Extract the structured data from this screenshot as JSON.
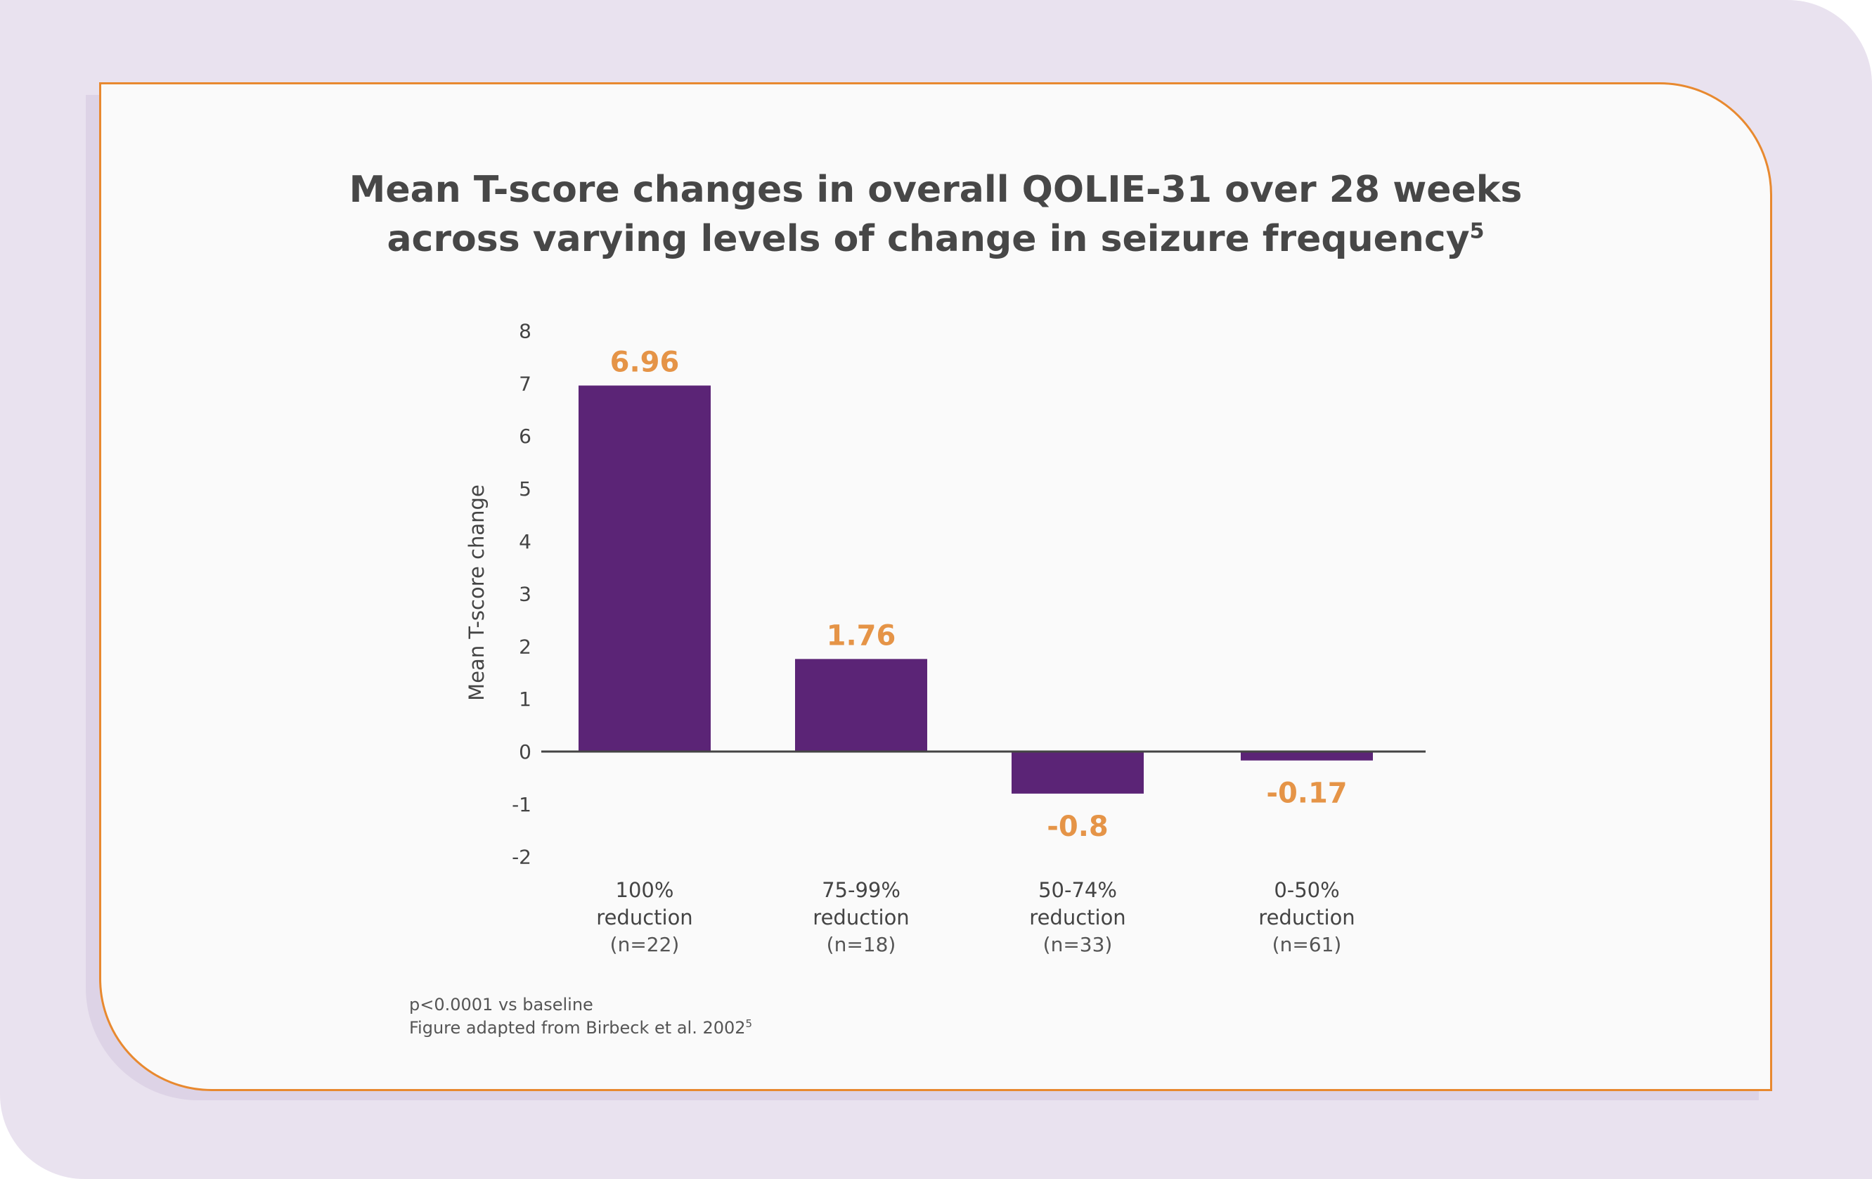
{
  "title": {
    "line1": "Mean T-score changes in overall QOLIE-31 over 28 weeks",
    "line2": "across varying levels of change in seizure frequency",
    "superscript": "5"
  },
  "chart_data": {
    "type": "bar",
    "title": "Mean T-score changes in overall QOLIE-31 over 28 weeks across varying levels of change in seizure frequency",
    "ylabel": "Mean T-score change",
    "xlabel": "",
    "ylim": [
      -2,
      8
    ],
    "yticks": [
      8,
      7,
      6,
      5,
      4,
      3,
      2,
      1,
      0,
      -1,
      -2
    ],
    "grid": false,
    "categories": [
      {
        "line1": "100%",
        "line2": "reduction",
        "n": "(n=22)"
      },
      {
        "line1": "75-99%",
        "line2": "reduction",
        "n": "(n=18)"
      },
      {
        "line1": "50-74%",
        "line2": "reduction",
        "n": "(n=33)"
      },
      {
        "line1": "0-50%",
        "line2": "reduction",
        "n": "(n=61)"
      }
    ],
    "values": [
      6.96,
      1.76,
      -0.8,
      -0.17
    ],
    "value_labels": [
      "6.96",
      "1.76",
      "-0.8",
      "-0.17"
    ],
    "colors": {
      "bar": "#5b2476",
      "value_label": "#e59447",
      "axis": "#444444",
      "text": "#444444"
    }
  },
  "footnote": {
    "line1": "p<0.0001 vs baseline",
    "line2": "Figure adapted from Birbeck et al. 2002",
    "superscript": "5"
  }
}
